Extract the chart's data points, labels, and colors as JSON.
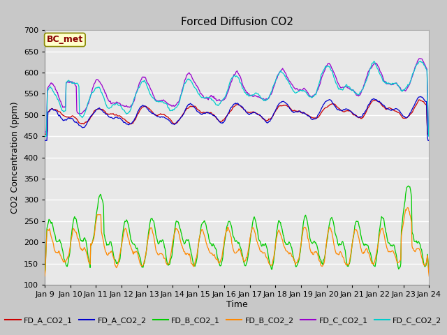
{
  "title": "Forced Diffusion CO2",
  "xlabel": "Time",
  "ylabel": "CO2 Concentration (ppm)",
  "ylim": [
    100,
    700
  ],
  "x_tick_labels": [
    "Jan 9",
    "Jan 10",
    "Jan 11",
    "Jan 12",
    "Jan 13",
    "Jan 14",
    "Jan 15",
    "Jan 16",
    "Jan 17",
    "Jan 18",
    "Jan 19",
    "Jan 20",
    "Jan 21",
    "Jan 22",
    "Jan 23",
    "Jan 24"
  ],
  "fig_bg_color": "#c8c8c8",
  "plot_bg_color": "#e8e8e8",
  "grid_color": "#ffffff",
  "series_colors": {
    "FD_A_CO2_1": "#cc0000",
    "FD_A_CO2_2": "#0000cc",
    "FD_B_CO2_1": "#00cc00",
    "FD_B_CO2_2": "#ff8800",
    "FD_C_CO2_1": "#9900cc",
    "FD_C_CO2_2": "#00cccc"
  },
  "legend_labels": [
    "FD_A_CO2_1",
    "FD_A_CO2_2",
    "FD_B_CO2_1",
    "FD_B_CO2_2",
    "FD_C_CO2_1",
    "FD_C_CO2_2"
  ],
  "bc_met_label": "BC_met",
  "bc_met_color": "#880000",
  "bc_met_bg": "#ffffcc",
  "bc_met_border": "#888800",
  "title_fontsize": 11,
  "axis_label_fontsize": 9,
  "tick_fontsize": 8,
  "legend_fontsize": 8
}
